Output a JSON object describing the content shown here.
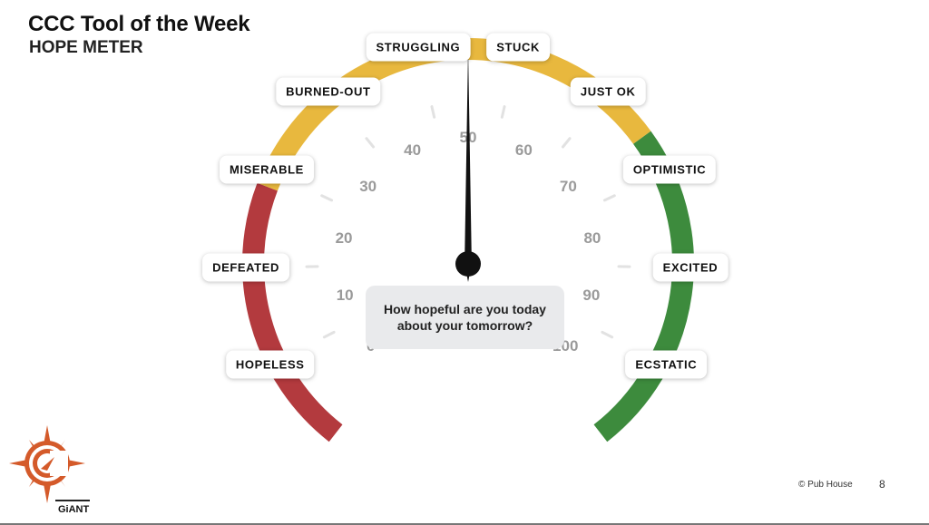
{
  "header": {
    "title": "CCC Tool of the Week",
    "subtitle": "HOPE METER"
  },
  "gauge": {
    "ticks": [
      "0",
      "10",
      "20",
      "30",
      "40",
      "50",
      "60",
      "70",
      "80",
      "90",
      "100"
    ],
    "labels": [
      "HOPELESS",
      "DEFEATED",
      "MISERABLE",
      "BURNED-OUT",
      "STRUGGLING",
      "STUCK",
      "JUST OK",
      "OPTIMISTIC",
      "EXCITED",
      "ECSTATIC"
    ],
    "needle_value": 50,
    "colors": {
      "red": "#b33a3e",
      "yellow": "#e8b83e",
      "green": "#3d8b3d",
      "needle": "#111111",
      "tick_label": "#9a9a9a"
    }
  },
  "question": "How hopeful are you today about your tomorrow?",
  "footer": {
    "copyright": "© Pub House",
    "page_number": "8"
  },
  "logo": {
    "wordmark": "GiANT"
  }
}
